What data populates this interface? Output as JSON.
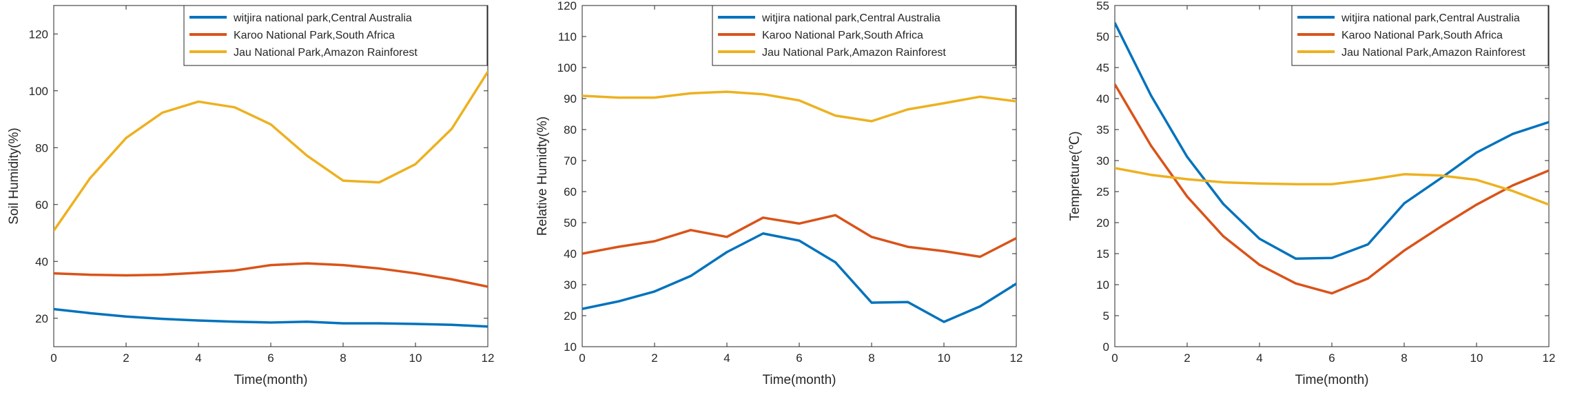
{
  "colors": {
    "series": [
      "#0072BD",
      "#D95319",
      "#EDB120"
    ],
    "axis": "#262626"
  },
  "chart_data": [
    {
      "type": "line",
      "xlabel": "Time(month)",
      "ylabel": "Soil Humidity(%)",
      "xlim": [
        0,
        12
      ],
      "ylim": [
        10,
        130
      ],
      "xticks": [
        0,
        2,
        4,
        6,
        8,
        10,
        12
      ],
      "yticks": [
        20,
        40,
        60,
        80,
        100,
        120
      ],
      "legend_position": "top-right",
      "x": [
        0,
        1,
        2,
        3,
        4,
        5,
        6,
        7,
        8,
        9,
        10,
        11,
        12
      ],
      "series": [
        {
          "name": "witjira national park,Central Australia",
          "values": [
            23.2,
            21.8,
            20.6,
            19.8,
            19.2,
            18.8,
            18.5,
            18.8,
            18.2,
            18.2,
            18.0,
            17.7,
            17.1
          ]
        },
        {
          "name": "Karoo National Park,South Africa",
          "values": [
            35.8,
            35.3,
            35.1,
            35.3,
            36.0,
            36.8,
            38.7,
            39.3,
            38.7,
            37.5,
            35.8,
            33.7,
            31.1
          ]
        },
        {
          "name": "Jau National Park,Amazon Rainforest",
          "values": [
            50.8,
            69.2,
            83.4,
            92.3,
            96.2,
            94.2,
            88.2,
            77.2,
            68.4,
            67.8,
            74.2,
            86.6,
            106.7
          ]
        }
      ]
    },
    {
      "type": "line",
      "xlabel": "Time(month)",
      "ylabel": "Relative Humidty(%)",
      "xlim": [
        0,
        12
      ],
      "ylim": [
        10,
        120
      ],
      "xticks": [
        0,
        2,
        4,
        6,
        8,
        10,
        12
      ],
      "yticks": [
        10,
        20,
        30,
        40,
        50,
        60,
        70,
        80,
        90,
        100,
        110,
        120
      ],
      "legend_position": "top-right",
      "x": [
        0,
        1,
        2,
        3,
        4,
        5,
        6,
        7,
        8,
        9,
        10,
        11,
        12
      ],
      "series": [
        {
          "name": "witjira national park,Central Australia",
          "values": [
            22.2,
            24.6,
            27.8,
            32.8,
            40.5,
            46.5,
            44.2,
            37.2,
            24.2,
            24.4,
            18.0,
            23.0,
            30.3
          ]
        },
        {
          "name": "Karoo National Park,South Africa",
          "values": [
            40.0,
            42.2,
            44.0,
            47.6,
            45.4,
            51.6,
            49.7,
            52.4,
            45.4,
            42.2,
            40.8,
            39.0,
            45.0
          ]
        },
        {
          "name": "Jau National Park,Amazon Rainforest",
          "values": [
            90.9,
            90.3,
            90.3,
            91.7,
            92.2,
            91.4,
            89.4,
            84.5,
            82.7,
            86.5,
            88.5,
            90.6,
            89.1
          ]
        }
      ]
    },
    {
      "type": "line",
      "xlabel": "Time(month)",
      "ylabel": "Tempreture(℃)",
      "xlim": [
        0,
        12
      ],
      "ylim": [
        0,
        55
      ],
      "xticks": [
        0,
        2,
        4,
        6,
        8,
        10,
        12
      ],
      "yticks": [
        0,
        5,
        10,
        15,
        20,
        25,
        30,
        35,
        40,
        45,
        50,
        55
      ],
      "legend_position": "top-right",
      "x": [
        0,
        1,
        2,
        3,
        4,
        5,
        6,
        7,
        8,
        9,
        10,
        11,
        12
      ],
      "series": [
        {
          "name": "witjira national park,Central Australia",
          "values": [
            52.2,
            40.5,
            30.6,
            23.0,
            17.4,
            14.2,
            14.3,
            16.5,
            23.1,
            27.1,
            31.3,
            34.3,
            36.2
          ]
        },
        {
          "name": "Karoo National Park,South Africa",
          "values": [
            42.3,
            32.4,
            24.2,
            17.8,
            13.2,
            10.2,
            8.6,
            11.0,
            15.5,
            19.3,
            22.9,
            26.0,
            28.4
          ]
        },
        {
          "name": "Jau National Park,Amazon Rainforest",
          "values": [
            28.8,
            27.7,
            27.0,
            26.5,
            26.3,
            26.2,
            26.2,
            26.9,
            27.8,
            27.6,
            26.9,
            25.1,
            22.9
          ]
        }
      ]
    }
  ]
}
